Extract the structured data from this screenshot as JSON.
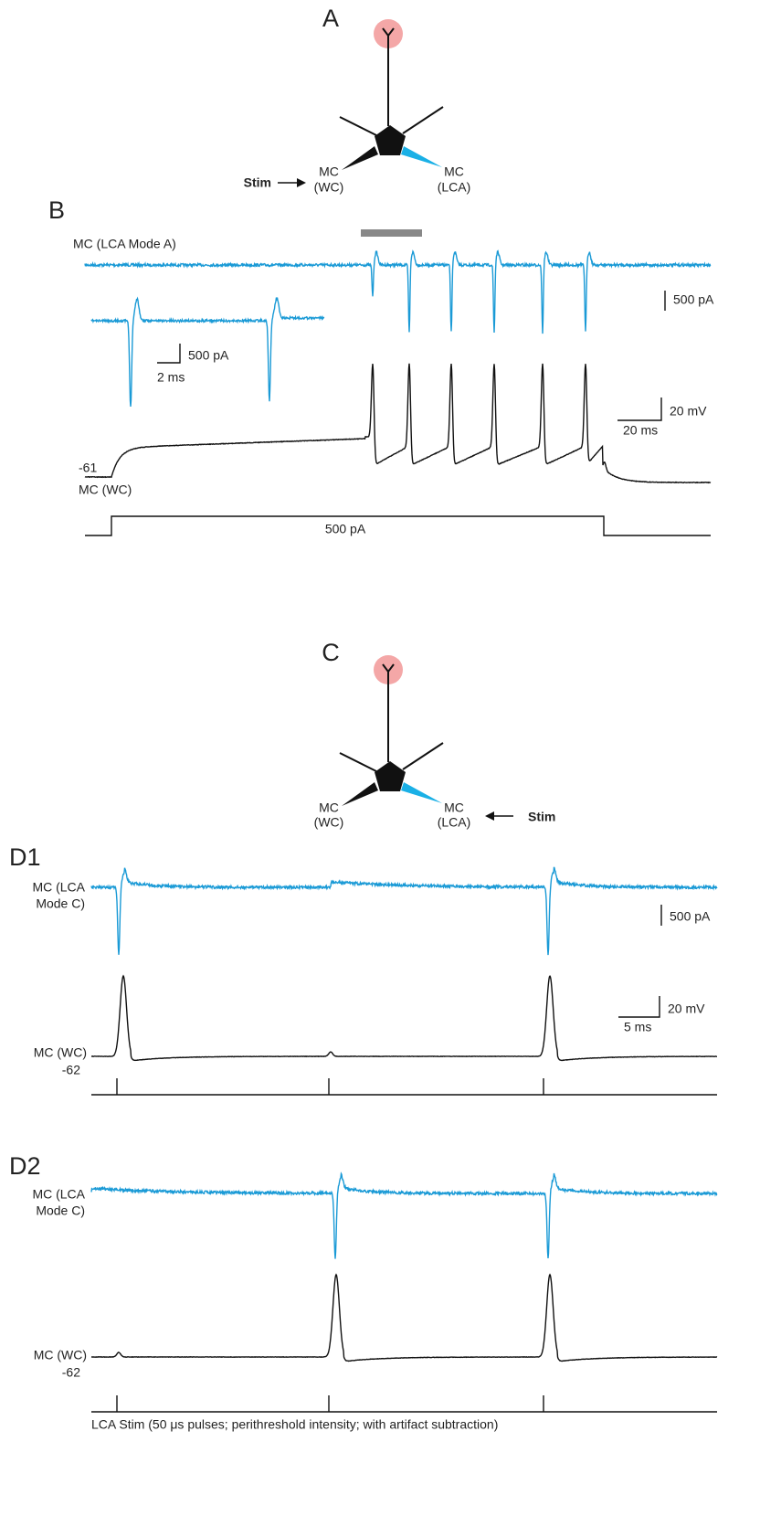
{
  "panel_a": {
    "label": "A",
    "stim": "Stim",
    "wc_label": [
      "MC",
      "(WC)"
    ],
    "lca_label": [
      "MC",
      "(LCA)"
    ]
  },
  "panel_b": {
    "label": "B",
    "trace_label": "MC (LCA Mode A)",
    "current_scale": "500 pA",
    "inset_current_scale": "500 pA",
    "inset_time_scale": "2 ms",
    "voltage_scale": "20 mV",
    "time_scale": "20 ms",
    "resting_potential": -61,
    "wc_label": "MC (WC)",
    "step_label": "500 pA"
  },
  "panel_c": {
    "label": "C",
    "stim": "Stim",
    "wc_label": [
      "MC",
      "(WC)"
    ],
    "lca_label": [
      "MC",
      "(LCA)"
    ]
  },
  "panel_d1": {
    "label": "D1",
    "lca_label": [
      "MC (LCA",
      "Mode C)"
    ],
    "current_scale": "500 pA",
    "voltage_scale": "20 mV",
    "time_scale": "5 ms",
    "wc_label": "MC (WC)",
    "resting_potential": -62
  },
  "panel_d2": {
    "label": "D2",
    "lca_label": [
      "MC (LCA",
      "Mode C)"
    ],
    "wc_label": "MC (WC)",
    "resting_potential": -62
  },
  "caption": "LCA Stim (50 μs pulses; perithreshold intensity; with artifact subtraction)"
}
